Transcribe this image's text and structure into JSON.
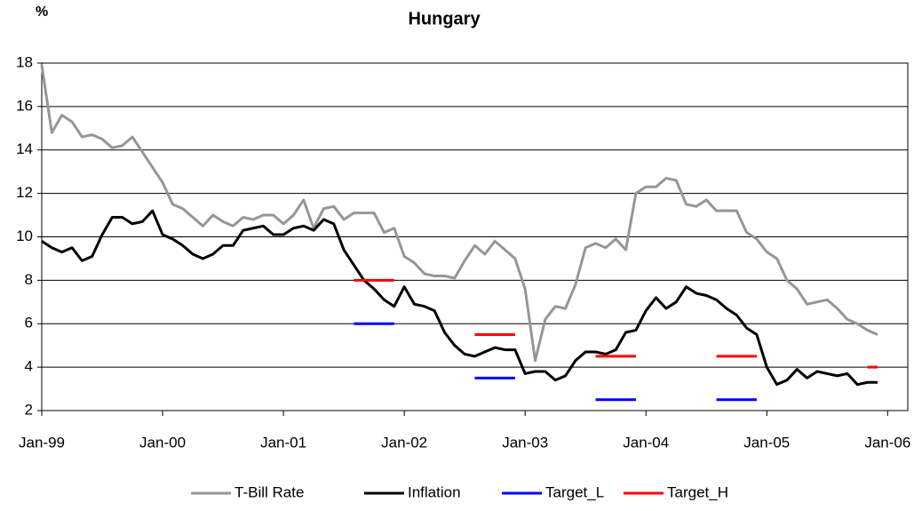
{
  "chart_data": {
    "type": "line",
    "title": "Hungary",
    "y_label": "%",
    "x": [
      "1999-01",
      "1999-02",
      "1999-03",
      "1999-04",
      "1999-05",
      "1999-06",
      "1999-07",
      "1999-08",
      "1999-09",
      "1999-10",
      "1999-11",
      "1999-12",
      "2000-01",
      "2000-02",
      "2000-03",
      "2000-04",
      "2000-05",
      "2000-06",
      "2000-07",
      "2000-08",
      "2000-09",
      "2000-10",
      "2000-11",
      "2000-12",
      "2001-01",
      "2001-02",
      "2001-03",
      "2001-04",
      "2001-05",
      "2001-06",
      "2001-07",
      "2001-08",
      "2001-09",
      "2001-10",
      "2001-11",
      "2001-12",
      "2002-01",
      "2002-02",
      "2002-03",
      "2002-04",
      "2002-05",
      "2002-06",
      "2002-07",
      "2002-08",
      "2002-09",
      "2002-10",
      "2002-11",
      "2002-12",
      "2003-01",
      "2003-02",
      "2003-03",
      "2003-04",
      "2003-05",
      "2003-06",
      "2003-07",
      "2003-08",
      "2003-09",
      "2003-10",
      "2003-11",
      "2003-12",
      "2004-01",
      "2004-02",
      "2004-03",
      "2004-04",
      "2004-05",
      "2004-06",
      "2004-07",
      "2004-08",
      "2004-09",
      "2004-10",
      "2004-11",
      "2004-12",
      "2005-01",
      "2005-02",
      "2005-03",
      "2005-04",
      "2005-05",
      "2005-06",
      "2005-07",
      "2005-08",
      "2005-09",
      "2005-10",
      "2005-11",
      "2005-12"
    ],
    "series": [
      {
        "name": "T-Bill Rate",
        "color": "#969696",
        "values": [
          17.9,
          14.8,
          15.6,
          15.3,
          14.6,
          14.7,
          14.5,
          14.1,
          14.2,
          14.6,
          13.9,
          13.2,
          12.5,
          11.5,
          11.3,
          10.9,
          10.5,
          11.0,
          10.7,
          10.5,
          10.9,
          10.8,
          11.0,
          11.0,
          10.6,
          11.0,
          11.7,
          10.4,
          11.3,
          11.4,
          10.8,
          11.1,
          11.1,
          11.1,
          10.2,
          10.4,
          9.1,
          8.8,
          8.3,
          8.2,
          8.2,
          8.1,
          8.9,
          9.6,
          9.2,
          9.8,
          9.4,
          9.0,
          7.6,
          4.3,
          6.2,
          6.8,
          6.7,
          7.8,
          9.5,
          9.7,
          9.5,
          9.9,
          9.4,
          12.0,
          12.3,
          12.3,
          12.7,
          12.6,
          11.5,
          11.4,
          11.7,
          11.2,
          11.2,
          11.2,
          10.2,
          9.9,
          9.3,
          9.0,
          8.0,
          7.6,
          6.9,
          7.0,
          7.1,
          6.7,
          6.2,
          6.0,
          5.7,
          5.5
        ]
      },
      {
        "name": "Inflation",
        "color": "#000000",
        "values": [
          9.8,
          9.5,
          9.3,
          9.5,
          8.9,
          9.1,
          10.1,
          10.9,
          10.9,
          10.6,
          10.7,
          11.2,
          10.1,
          9.9,
          9.6,
          9.2,
          9.0,
          9.2,
          9.6,
          9.6,
          10.3,
          10.4,
          10.5,
          10.1,
          10.1,
          10.4,
          10.5,
          10.3,
          10.8,
          10.6,
          9.4,
          8.7,
          8.0,
          7.6,
          7.1,
          6.8,
          7.7,
          6.9,
          6.8,
          6.6,
          5.6,
          5.0,
          4.6,
          4.5,
          4.7,
          4.9,
          4.8,
          4.8,
          3.7,
          3.8,
          3.8,
          3.4,
          3.6,
          4.3,
          4.7,
          4.7,
          4.6,
          4.8,
          5.6,
          5.7,
          6.6,
          7.2,
          6.7,
          7.0,
          7.7,
          7.4,
          7.3,
          7.1,
          6.7,
          6.4,
          5.8,
          5.5,
          4.0,
          3.2,
          3.4,
          3.9,
          3.5,
          3.8,
          3.7,
          3.6,
          3.7,
          3.2,
          3.3,
          3.3
        ]
      },
      {
        "name": "Target_L",
        "color": "#0000ff",
        "values": [
          null,
          null,
          null,
          null,
          null,
          null,
          null,
          null,
          null,
          null,
          null,
          null,
          null,
          null,
          null,
          null,
          null,
          null,
          null,
          null,
          null,
          null,
          null,
          null,
          null,
          null,
          null,
          null,
          null,
          null,
          null,
          6,
          6,
          6,
          6,
          6,
          null,
          null,
          null,
          null,
          null,
          null,
          null,
          3.5,
          3.5,
          3.5,
          3.5,
          3.5,
          null,
          null,
          null,
          null,
          null,
          null,
          null,
          2.5,
          2.5,
          2.5,
          2.5,
          2.5,
          null,
          null,
          null,
          null,
          null,
          null,
          null,
          2.5,
          2.5,
          2.5,
          2.5,
          2.5,
          null,
          null,
          null,
          null,
          null,
          null,
          null,
          null,
          null,
          null,
          null,
          null
        ]
      },
      {
        "name": "Target_H",
        "color": "#ff0000",
        "values": [
          null,
          null,
          null,
          null,
          null,
          null,
          null,
          null,
          null,
          null,
          null,
          null,
          null,
          null,
          null,
          null,
          null,
          null,
          null,
          null,
          null,
          null,
          null,
          null,
          null,
          null,
          null,
          null,
          null,
          null,
          null,
          8,
          8,
          8,
          8,
          8,
          null,
          null,
          null,
          null,
          null,
          null,
          null,
          5.5,
          5.5,
          5.5,
          5.5,
          5.5,
          null,
          null,
          null,
          null,
          null,
          null,
          null,
          4.5,
          4.5,
          4.5,
          4.5,
          4.5,
          null,
          null,
          null,
          null,
          null,
          null,
          null,
          4.5,
          4.5,
          4.5,
          4.5,
          4.5,
          null,
          null,
          null,
          null,
          null,
          null,
          null,
          null,
          null,
          null,
          4,
          4
        ]
      }
    ],
    "xlim": [
      "1999-01",
      "2006-03"
    ],
    "xticks": [
      {
        "value": "1999-01",
        "label": "Jan-99"
      },
      {
        "value": "2000-01",
        "label": "Jan-00"
      },
      {
        "value": "2001-01",
        "label": "Jan-01"
      },
      {
        "value": "2002-01",
        "label": "Jan-02"
      },
      {
        "value": "2003-01",
        "label": "Jan-03"
      },
      {
        "value": "2004-01",
        "label": "Jan-04"
      },
      {
        "value": "2005-01",
        "label": "Jan-05"
      },
      {
        "value": "2006-01",
        "label": "Jan-06"
      }
    ],
    "ylim": [
      2,
      18
    ],
    "yticks": [
      2,
      4,
      6,
      8,
      10,
      12,
      14,
      16,
      18
    ],
    "grid": true,
    "legend": "bottom"
  }
}
